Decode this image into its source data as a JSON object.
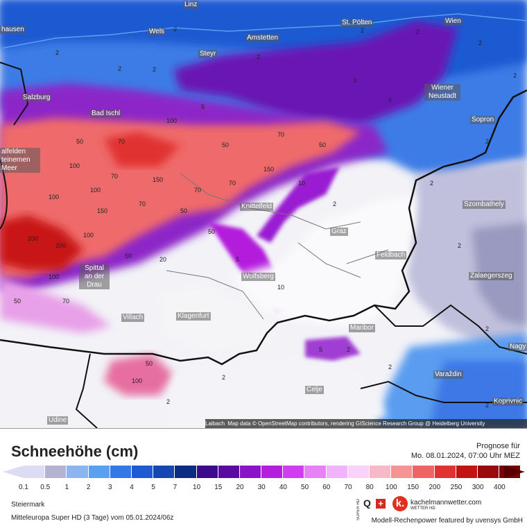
{
  "map": {
    "cities": [
      {
        "name": "Linz"
      },
      {
        "name": "Wien"
      },
      {
        "name": "St. Pölten"
      },
      {
        "name": "Wels"
      },
      {
        "name": "Amstetten"
      },
      {
        "name": "hausen"
      },
      {
        "name": "Steyr"
      },
      {
        "name": "Wiener Neustadt"
      },
      {
        "name": "Salzburg"
      },
      {
        "name": "Bad Ischl"
      },
      {
        "name": "Sopron"
      },
      {
        "name": "alfelden teinernen Meer"
      },
      {
        "name": "Knittelfeld"
      },
      {
        "name": "Szombathely"
      },
      {
        "name": "Graz"
      },
      {
        "name": "Feldbach"
      },
      {
        "name": "Spittal an der Drau"
      },
      {
        "name": "Wolfsberg"
      },
      {
        "name": "Zalaegerszeg"
      },
      {
        "name": "Villach"
      },
      {
        "name": "Klagenfurt"
      },
      {
        "name": "Maribor"
      },
      {
        "name": "Nagy"
      },
      {
        "name": "Varaždin"
      },
      {
        "name": "Celje"
      },
      {
        "name": "Koprivnic"
      },
      {
        "name": "Udine"
      }
    ],
    "values": [
      "2",
      "5",
      "50",
      "100",
      "70",
      "150",
      "200",
      "20",
      "10"
    ],
    "attribution_place": "Laibach",
    "attribution": "Map data © OpenStreetMap contributors, rendering GIScience Research Group @ Heidelberg University"
  },
  "legend": {
    "title": "Schneehöhe (cm)",
    "forecast_label": "Prognose für",
    "forecast_time": "Mo. 08.01.2024, 07:00 Uhr MEZ",
    "colors": [
      "#dcdcf4",
      "#b4b4d2",
      "#8cb4f0",
      "#5aa0f0",
      "#3278e6",
      "#1e5ad2",
      "#1446b4",
      "#0a2d82",
      "#3c0a8c",
      "#5a0aa0",
      "#8c14c8",
      "#b41edc",
      "#d23cf0",
      "#e682f5",
      "#f0b4fa",
      "#f8d2f8",
      "#f7b8c8",
      "#f49494",
      "#ef6464",
      "#e13232",
      "#c31414",
      "#9b0a0a",
      "#780505",
      "#5a0000"
    ],
    "ticks": [
      "0.1",
      "0.5",
      "1",
      "2",
      "3",
      "4",
      "5",
      "7",
      "10",
      "15",
      "20",
      "30",
      "40",
      "50",
      "60",
      "70",
      "80",
      "100",
      "150",
      "200",
      "250",
      "300",
      "400"
    ],
    "region": "Steiermark",
    "model": "Mitteleuropa Super HD (3 Tage) vom 05.01.2024/06z",
    "logo_super": "SUPER HD",
    "logo_q": "Q",
    "logo_ch": "+",
    "logo_k": "k.",
    "logo_name": "kachelmannwetter.com",
    "logo_sub": "WETTER HD",
    "powered": "Modell-Rechenpower featured by uvensys GmbH"
  }
}
